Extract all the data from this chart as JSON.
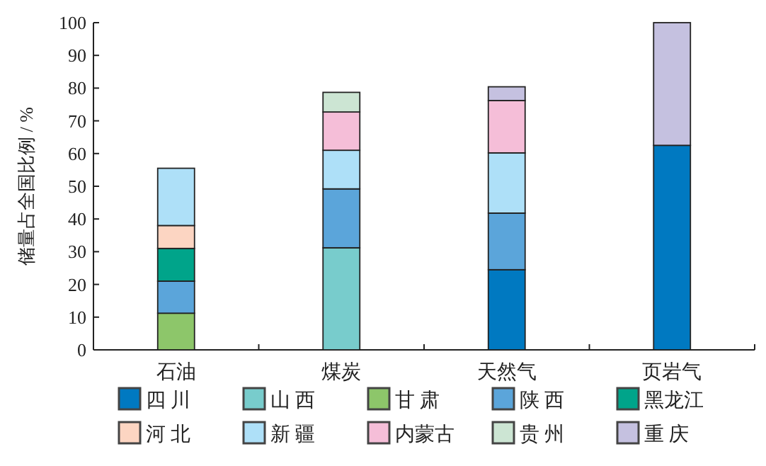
{
  "chart_data": {
    "type": "bar",
    "stacked": true,
    "ylabel": "储量占全国比例 / %",
    "categories": [
      "石油",
      "煤炭",
      "天然气",
      "页岩气"
    ],
    "ylim": [
      0,
      100
    ],
    "yticks": [
      0,
      10,
      20,
      30,
      40,
      50,
      60,
      70,
      80,
      90,
      100
    ],
    "grid": false,
    "legend": "bottom",
    "series": [
      {
        "name": "四 川",
        "color": "#0079c1",
        "values": [
          null,
          null,
          24.5,
          62.5
        ]
      },
      {
        "name": "山 西",
        "color": "#78cccc",
        "values": [
          null,
          31.2,
          null,
          null
        ]
      },
      {
        "name": "甘 肃",
        "color": "#8dc66a",
        "values": [
          11.2,
          null,
          null,
          null
        ]
      },
      {
        "name": "陕 西",
        "color": "#5ba5da",
        "values": [
          9.8,
          18,
          17.3,
          null
        ]
      },
      {
        "name": "黑龙江",
        "color": "#00a48a",
        "values": [
          10,
          null,
          null,
          null
        ]
      },
      {
        "name": "河 北",
        "color": "#fcd5c2",
        "values": [
          7,
          null,
          null,
          null
        ]
      },
      {
        "name": "新 疆",
        "color": "#aee0f8",
        "values": [
          17.5,
          11.8,
          18.4,
          null
        ]
      },
      {
        "name": "内蒙古",
        "color": "#f5bed8",
        "values": [
          null,
          11.7,
          16,
          null
        ]
      },
      {
        "name": "贵 州",
        "color": "#cce5d3",
        "values": [
          null,
          6,
          null,
          null
        ]
      },
      {
        "name": "重 庆",
        "color": "#c5c1e0",
        "values": [
          null,
          null,
          4.2,
          37.5
        ]
      }
    ]
  }
}
